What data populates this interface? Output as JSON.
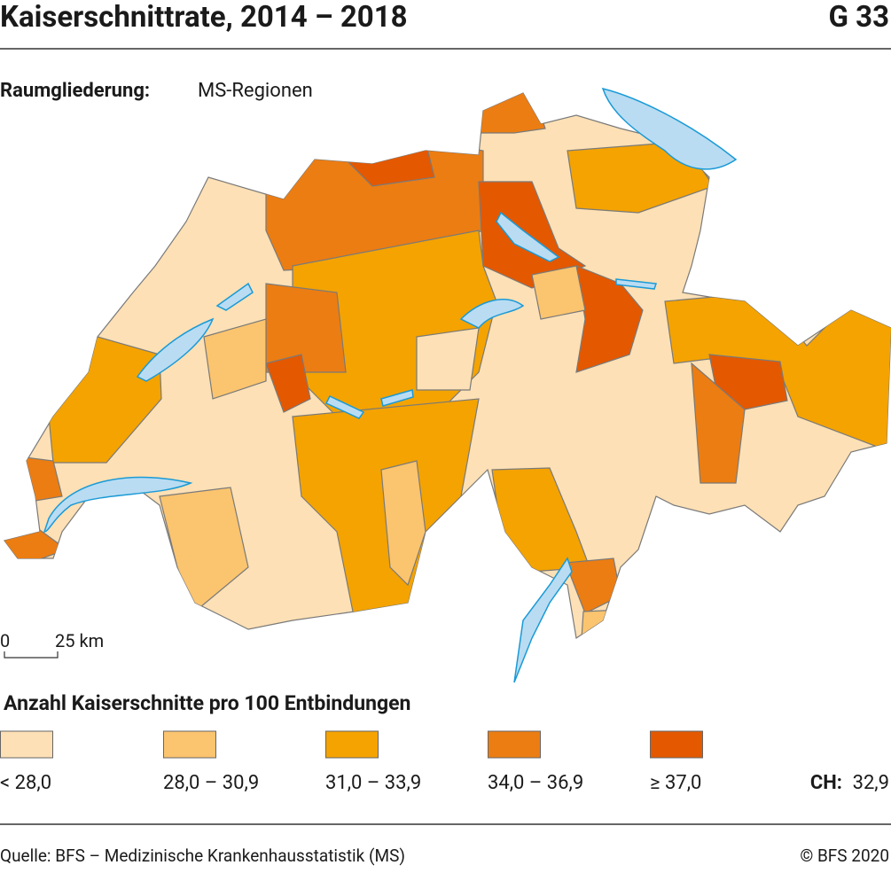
{
  "header": {
    "title": "Kaiserschnittrate, 2014 – 2018",
    "code": "G 33"
  },
  "subtitle": {
    "label": "Raumgliederung:",
    "value": "MS-Regionen"
  },
  "scale": {
    "start": "0",
    "end": "25 km"
  },
  "legend": {
    "title": "Anzahl Kaiserschnitte pro 100 Entbindungen",
    "items": [
      {
        "label": "< 28,0",
        "color": "#fde0b5"
      },
      {
        "label": "28,0 – 30,9",
        "color": "#fbc46e"
      },
      {
        "label": "31,0 – 33,9",
        "color": "#f4a300"
      },
      {
        "label": "34,0 – 36,9",
        "color": "#ec7d12"
      },
      {
        "label": "≥ 37,0",
        "color": "#e45800"
      }
    ]
  },
  "national": {
    "label": "CH:",
    "value": "32,9"
  },
  "footer": {
    "source": "Quelle: BFS – Medizinische Krankenhausstatistik (MS)",
    "copyright": "© BFS 2020"
  }
}
